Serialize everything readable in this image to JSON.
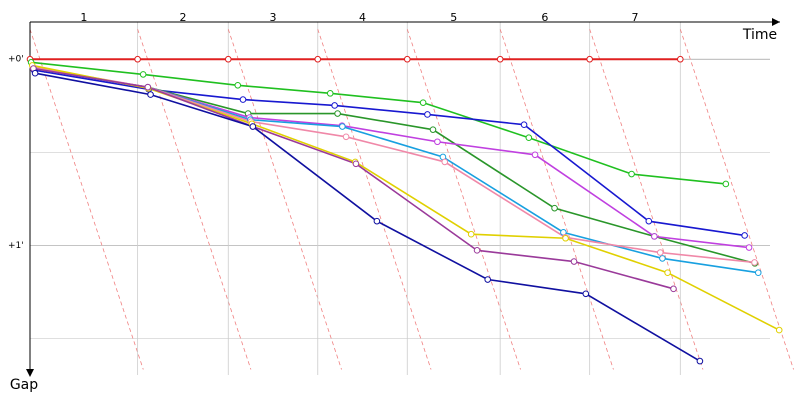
{
  "chart_data": {
    "type": "line",
    "x_label": "Time",
    "y_label": "Gap",
    "categories": [
      "1",
      "2",
      "3",
      "4",
      "5",
      "6",
      "7"
    ],
    "x": [
      0,
      95,
      175,
      254,
      333,
      415,
      494,
      574
    ],
    "xlim": [
      0,
      662
    ],
    "ylim": [
      -12,
      105
    ],
    "yticks": [
      {
        "value": 0,
        "label": "+0'"
      },
      {
        "value": 60,
        "label": "+1'"
      }
    ],
    "minor_gridlines": [
      30,
      90
    ],
    "lap_line_color": "#f08080",
    "series": [
      {
        "color": "#e02020",
        "values": [
          0,
          0,
          0,
          0,
          0,
          0,
          0,
          0
        ]
      },
      {
        "color": "#20c020",
        "values": [
          1,
          4.9,
          8.4,
          11,
          14,
          25.3,
          37,
          40.2
        ]
      },
      {
        "color": "#1818d0",
        "values": [
          3.5,
          9.7,
          13,
          14.9,
          17.8,
          21.1,
          52.2,
          56.8
        ]
      },
      {
        "color": "#2a962a",
        "values": [
          3,
          9,
          17.5,
          17.5,
          22.7,
          48,
          57.1,
          65.8
        ]
      },
      {
        "color": "#c040e0",
        "values": [
          3,
          9,
          18.8,
          21.4,
          26.6,
          30.8,
          57.1,
          60.7
        ]
      },
      {
        "color": "#18a0e0",
        "values": [
          3,
          9,
          19.5,
          21.7,
          31.5,
          55.8,
          64.2,
          68.8
        ]
      },
      {
        "color": "#f088a8",
        "values": [
          2.5,
          9,
          20.1,
          25,
          33.1,
          57.4,
          62.3,
          65.5
        ]
      },
      {
        "color": "#e0d000",
        "values": [
          2,
          9.4,
          20.8,
          33.1,
          56.4,
          57.7,
          68.8,
          87.3
        ]
      },
      {
        "color": "#9a3a9a",
        "values": [
          3,
          9,
          21.7,
          33.7,
          61.6,
          65.2,
          74,
          null
        ]
      },
      {
        "color": "#1010a0",
        "values": [
          4.5,
          11.4,
          21.7,
          52.2,
          71,
          75.6,
          97.3,
          null
        ]
      }
    ]
  }
}
